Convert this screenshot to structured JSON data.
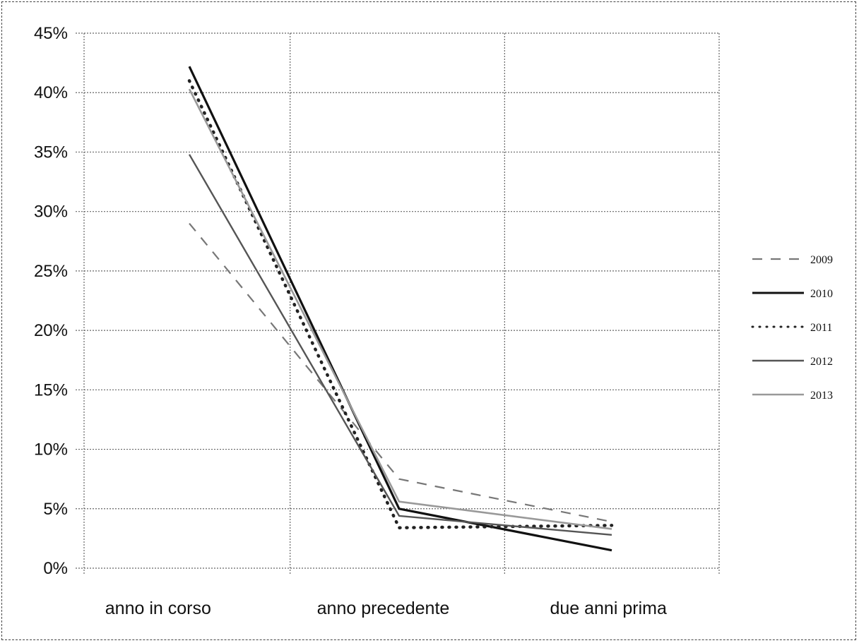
{
  "chart_data": {
    "type": "line",
    "title": "",
    "xlabel": "",
    "ylabel": "",
    "categories": [
      "anno in corso",
      "anno precedente",
      "due anni prima"
    ],
    "ylim": [
      0,
      0.45
    ],
    "yticks": [
      0,
      0.05,
      0.1,
      0.15,
      0.2,
      0.25,
      0.3,
      0.35,
      0.4,
      0.45
    ],
    "ytick_labels": [
      "0%",
      "5%",
      "10%",
      "15%",
      "20%",
      "25%",
      "30%",
      "35%",
      "40%",
      "45%"
    ],
    "grid": true,
    "legend_position": "right",
    "series": [
      {
        "name": "2009",
        "values": [
          0.29,
          0.075,
          0.039
        ],
        "color": "#777777",
        "style": "dash"
      },
      {
        "name": "2010",
        "values": [
          0.422,
          0.05,
          0.015
        ],
        "color": "#111111",
        "style": "solid"
      },
      {
        "name": "2011",
        "values": [
          0.41,
          0.034,
          0.036
        ],
        "color": "#222222",
        "style": "dot"
      },
      {
        "name": "2012",
        "values": [
          0.348,
          0.044,
          0.028
        ],
        "color": "#555555",
        "style": "solid-thin"
      },
      {
        "name": "2013",
        "values": [
          0.403,
          0.056,
          0.033
        ],
        "color": "#999999",
        "style": "solid-light"
      }
    ]
  }
}
